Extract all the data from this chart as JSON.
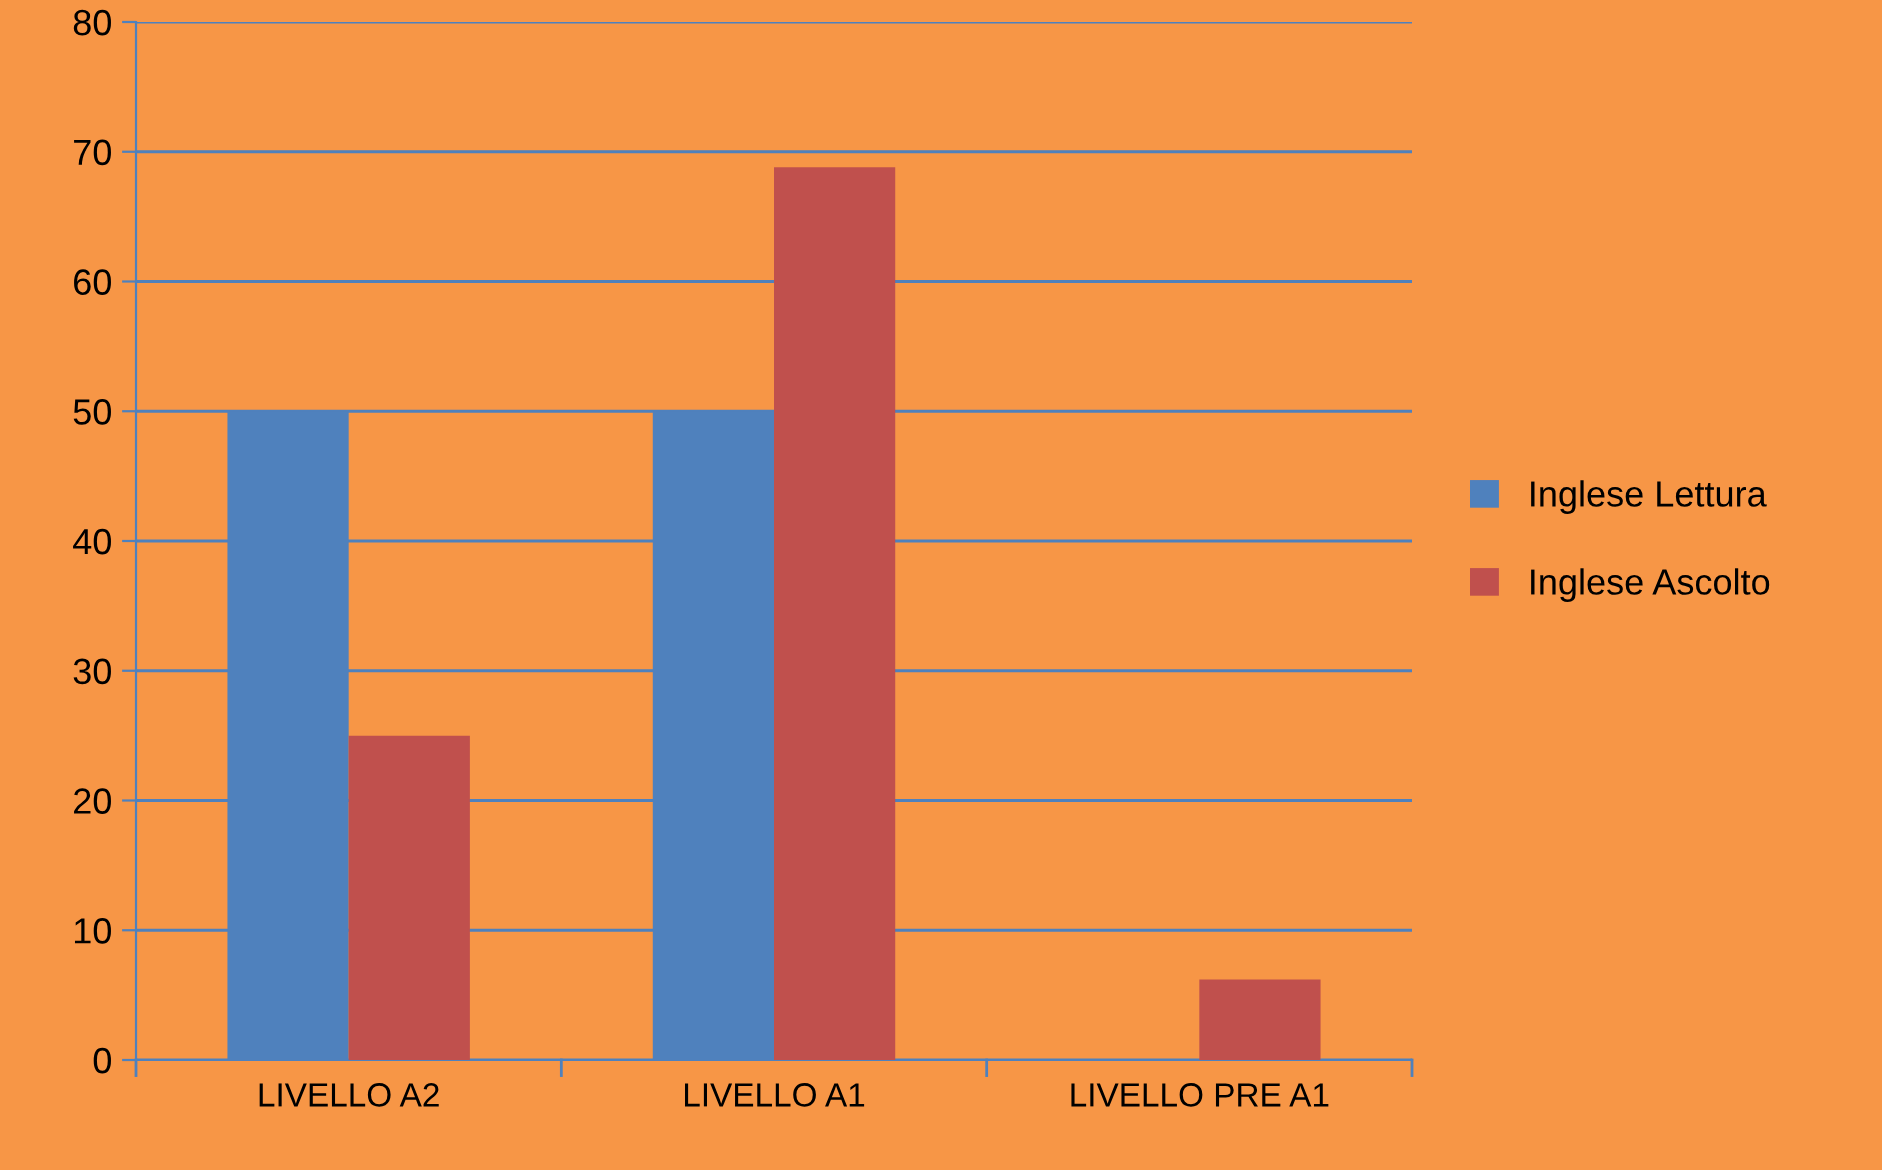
{
  "chart_data": {
    "type": "bar",
    "categories": [
      "LIVELLO A2",
      "LIVELLO A1",
      "LIVELLO PRE A1"
    ],
    "series": [
      {
        "name": "Inglese Lettura",
        "color": "#4f81bd",
        "values": [
          50,
          50,
          0
        ]
      },
      {
        "name": "Inglese Ascolto",
        "color": "#c0504d",
        "values": [
          25,
          68.8,
          6.2
        ]
      }
    ],
    "ylim": [
      0,
      80
    ],
    "yticks": [
      0,
      10,
      20,
      30,
      40,
      50,
      60,
      70,
      80
    ],
    "grid": "y",
    "legend": "right"
  }
}
